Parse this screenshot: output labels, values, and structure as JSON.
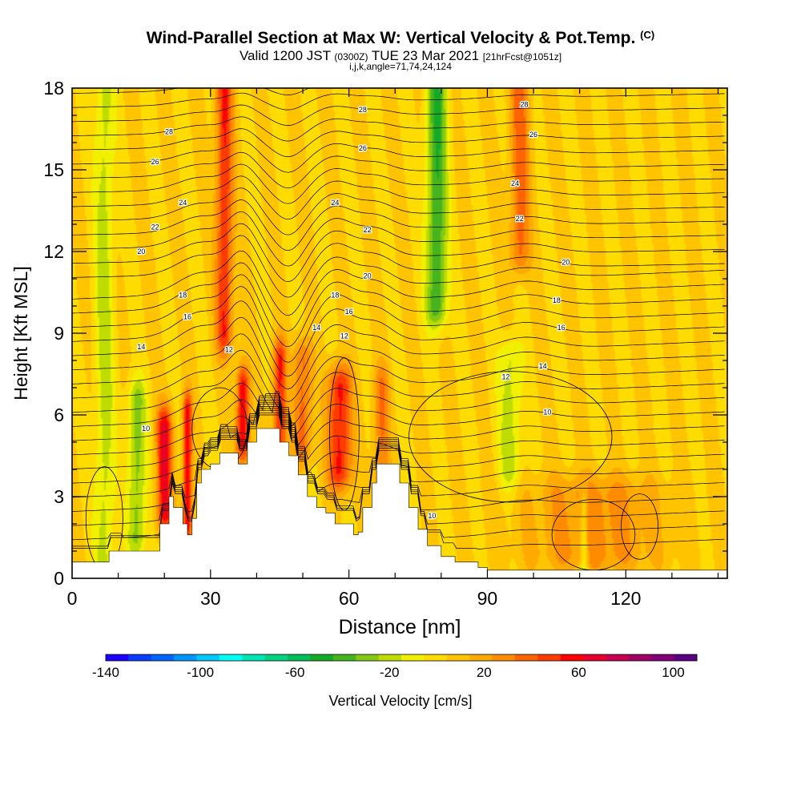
{
  "header": {
    "title": "Wind-Parallel Section at Max W: Vertical Velocity & Pot.Temp.",
    "copyright": "(C)",
    "subtitle_a": "Valid 1200 JST",
    "subtitle_b": "(0300Z)",
    "subtitle_c": "TUE 23 Mar 2021",
    "subtitle_d": "[21hrFcst@1051z]",
    "params": "i,j,k,angle=71,74,24,124"
  },
  "chart_data": {
    "type": "heatmap",
    "xlabel": "Distance [nm]",
    "ylabel": "Height [Kft MSL]",
    "xlim": [
      0,
      142
    ],
    "ylim": [
      0,
      18
    ],
    "x_ticks": [
      0,
      30,
      60,
      90,
      120
    ],
    "x_tick_labels": [
      "0",
      "30",
      "60",
      "90",
      "120"
    ],
    "y_ticks": [
      0,
      3,
      6,
      9,
      12,
      15,
      18
    ],
    "y_tick_labels": [
      "0",
      "3",
      "6",
      "9",
      "12",
      "15",
      "18"
    ],
    "colorbar": {
      "label": "Vertical Velocity [cm/s]",
      "range": [
        -140,
        110
      ],
      "step": 10,
      "tick_values": [
        -140,
        -100,
        -60,
        -20,
        20,
        60,
        100
      ],
      "tick_labels": [
        "-140",
        "-100",
        "-60",
        "-20",
        "20",
        "60",
        "100"
      ],
      "colors": [
        "#1e00ff",
        "#0a3cff",
        "#0064ff",
        "#0096ff",
        "#00c8ff",
        "#00fff5",
        "#00e6b4",
        "#00d282",
        "#00be5a",
        "#14aa28",
        "#46b41e",
        "#82c814",
        "#bedc00",
        "#f0f000",
        "#ffdc00",
        "#ffc300",
        "#ffaa00",
        "#ff8c00",
        "#ff6400",
        "#ff3c00",
        "#ff0000",
        "#e6002d",
        "#c80050",
        "#a00064",
        "#800078",
        "#5a0082"
      ]
    },
    "vertical_velocity_features": [
      {
        "x": 7,
        "ylo": 0.5,
        "yhi": 18,
        "w": 1.5,
        "v": -25
      },
      {
        "x": 14,
        "ylo": 1.5,
        "yhi": 6.5,
        "w": 1.4,
        "v": -35
      },
      {
        "x": 20,
        "ylo": 2.5,
        "yhi": 5.5,
        "w": 1.2,
        "v": 60
      },
      {
        "x": 25,
        "ylo": 2,
        "yhi": 6,
        "w": 0.7,
        "v": 60
      },
      {
        "x": 33,
        "ylo": 9,
        "yhi": 18,
        "w": 1.3,
        "v": 50
      },
      {
        "x": 37,
        "ylo": 5,
        "yhi": 7,
        "w": 1.0,
        "v": 60
      },
      {
        "x": 45,
        "ylo": 4,
        "yhi": 8,
        "w": 1.0,
        "v": 50
      },
      {
        "x": 50,
        "ylo": 5,
        "yhi": 8,
        "w": 1.4,
        "v": 35
      },
      {
        "x": 58,
        "ylo": 4,
        "yhi": 7,
        "w": 1.8,
        "v": 55
      },
      {
        "x": 67,
        "ylo": 3,
        "yhi": 7,
        "w": 1.2,
        "v": 30
      },
      {
        "x": 79,
        "ylo": 10,
        "yhi": 18,
        "w": 1.6,
        "v": -50
      },
      {
        "x": 95,
        "ylo": 4,
        "yhi": 8,
        "w": 1.8,
        "v": -25
      },
      {
        "x": 97,
        "ylo": 12,
        "yhi": 18,
        "w": 1.5,
        "v": 35
      },
      {
        "x": 113,
        "ylo": 1,
        "yhi": 3,
        "w": 10,
        "v": 25
      },
      {
        "x": 111,
        "ylo": 0.5,
        "yhi": 2.5,
        "w": 0.6,
        "v": -30
      }
    ],
    "theta_contour_labels": [
      {
        "text": "10",
        "x": 16,
        "y": 5.5
      },
      {
        "text": "14",
        "x": 15,
        "y": 8.5
      },
      {
        "text": "12",
        "x": 34,
        "y": 8.4
      },
      {
        "text": "16",
        "x": 25,
        "y": 9.6
      },
      {
        "text": "18",
        "x": 24,
        "y": 10.4
      },
      {
        "text": "20",
        "x": 15,
        "y": 12
      },
      {
        "text": "22",
        "x": 18,
        "y": 12.9
      },
      {
        "text": "24",
        "x": 24,
        "y": 13.8
      },
      {
        "text": "26",
        "x": 18,
        "y": 15.3
      },
      {
        "text": "28",
        "x": 21,
        "y": 16.4
      },
      {
        "text": "28",
        "x": 63,
        "y": 17.2
      },
      {
        "text": "26",
        "x": 63,
        "y": 15.8
      },
      {
        "text": "24",
        "x": 57,
        "y": 13.8
      },
      {
        "text": "22",
        "x": 64,
        "y": 12.8
      },
      {
        "text": "20",
        "x": 64,
        "y": 11.1
      },
      {
        "text": "18",
        "x": 57,
        "y": 10.4
      },
      {
        "text": "16",
        "x": 60,
        "y": 9.8
      },
      {
        "text": "14",
        "x": 53,
        "y": 9.2
      },
      {
        "text": "12",
        "x": 59,
        "y": 8.9
      },
      {
        "text": "28",
        "x": 98,
        "y": 17.4
      },
      {
        "text": "26",
        "x": 100,
        "y": 16.3
      },
      {
        "text": "24",
        "x": 96,
        "y": 14.5
      },
      {
        "text": "22",
        "x": 97,
        "y": 13.2
      },
      {
        "text": "20",
        "x": 107,
        "y": 11.6
      },
      {
        "text": "18",
        "x": 105,
        "y": 10.2
      },
      {
        "text": "16",
        "x": 106,
        "y": 9.2
      },
      {
        "text": "14",
        "x": 102,
        "y": 7.8
      },
      {
        "text": "12",
        "x": 94,
        "y": 7.4
      },
      {
        "text": "10",
        "x": 103,
        "y": 6.1
      },
      {
        "text": "10",
        "x": 78,
        "y": 2.3
      }
    ],
    "terrain_height_kft": [
      [
        0,
        0.6
      ],
      [
        3,
        0.6
      ],
      [
        6,
        0.6
      ],
      [
        8,
        1.0
      ],
      [
        12,
        1.0
      ],
      [
        14,
        1.0
      ],
      [
        17,
        1.0
      ],
      [
        19,
        2.0
      ],
      [
        21,
        3.0
      ],
      [
        22,
        2.6
      ],
      [
        24,
        2.0
      ],
      [
        25,
        1.6
      ],
      [
        26,
        2.2
      ],
      [
        27,
        3.5
      ],
      [
        28,
        4.0
      ],
      [
        30,
        4.2
      ],
      [
        32,
        4.6
      ],
      [
        34,
        4.6
      ],
      [
        36,
        4.2
      ],
      [
        38,
        5.0
      ],
      [
        40,
        5.5
      ],
      [
        43,
        5.5
      ],
      [
        45,
        5.0
      ],
      [
        47,
        4.5
      ],
      [
        49,
        3.8
      ],
      [
        51,
        3.0
      ],
      [
        53,
        2.6
      ],
      [
        55,
        2.4
      ],
      [
        57,
        2.0
      ],
      [
        59,
        2.0
      ],
      [
        61,
        1.6
      ],
      [
        62,
        1.7
      ],
      [
        63,
        2.6
      ],
      [
        65,
        3.5
      ],
      [
        66,
        4.2
      ],
      [
        69,
        4.2
      ],
      [
        71,
        3.5
      ],
      [
        73,
        2.6
      ],
      [
        75,
        1.8
      ],
      [
        77,
        1.2
      ],
      [
        80,
        0.8
      ],
      [
        83,
        0.6
      ],
      [
        86,
        0.6
      ],
      [
        88,
        0.4
      ],
      [
        90,
        0.3
      ],
      [
        100,
        0.3
      ],
      [
        120,
        0.3
      ],
      [
        142,
        0.3
      ]
    ]
  }
}
